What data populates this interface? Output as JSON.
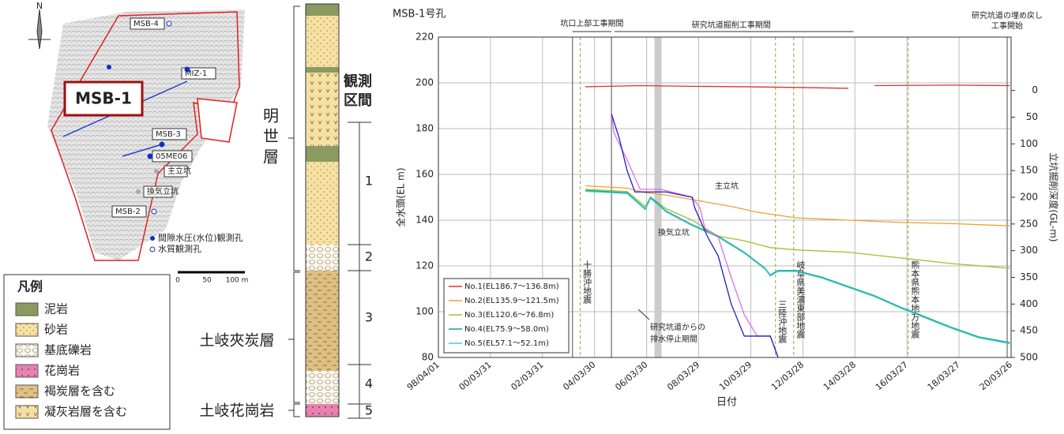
{
  "map": {
    "north": "N",
    "labels": [
      "MSB-4",
      "MIZ-1",
      "MSB-3",
      "05ME06",
      "主立坑",
      "換気立坑",
      "MSB-2"
    ],
    "highlight": "MSB-1",
    "key": [
      "間隙水圧(水位)観測孔",
      "水質観測孔"
    ],
    "scale": [
      "0",
      "50",
      "100 m"
    ]
  },
  "legend": {
    "title": "凡例",
    "items": [
      "泥岩",
      "砂岩",
      "基底礫岩",
      "花崗岩",
      "褐炭層を含む",
      "凝灰岩層を含む"
    ]
  },
  "column": {
    "heading": [
      "観測",
      "区間"
    ],
    "formations": [
      "明世層",
      "土岐夾炭層",
      "土岐花崗岩"
    ],
    "intervals": [
      "1",
      "2",
      "3",
      "4",
      "5"
    ]
  },
  "chart_data": {
    "type": "line",
    "title": "MSB-1号孔",
    "xlabel": "日付",
    "ylabel": "全水頭(EL m)",
    "y2label": "立坑掘削深度(GL-m)",
    "xlim": [
      1998.25,
      2020.25
    ],
    "xticks": [
      {
        "value": 1998.25,
        "label": "98/04/01"
      },
      {
        "value": 2000.25,
        "label": "00/03/31"
      },
      {
        "value": 2002.25,
        "label": "02/03/31"
      },
      {
        "value": 2004.25,
        "label": "04/03/30"
      },
      {
        "value": 2006.25,
        "label": "06/03/30"
      },
      {
        "value": 2008.25,
        "label": "08/03/29"
      },
      {
        "value": 2010.25,
        "label": "10/03/29"
      },
      {
        "value": 2012.25,
        "label": "12/03/28"
      },
      {
        "value": 2014.25,
        "label": "14/03/28"
      },
      {
        "value": 2016.25,
        "label": "16/03/27"
      },
      {
        "value": 2018.25,
        "label": "18/03/27"
      },
      {
        "value": 2020.25,
        "label": "20/03/26"
      }
    ],
    "ylim": [
      80,
      220
    ],
    "yticks": [
      80,
      100,
      120,
      140,
      160,
      180,
      200,
      220
    ],
    "y2lim": [
      500,
      -100
    ],
    "y2ticks": [
      0,
      50,
      100,
      150,
      200,
      250,
      300,
      350,
      400,
      450,
      500
    ],
    "grid": true,
    "annotations": [
      "坑口上部工事期間",
      "研究坑道掘削工事期間",
      "研究坑道の埋め戻し",
      "工事開始",
      "十勝沖地震",
      "三陸沖地震",
      "岐阜県美濃東部地震",
      "熊本県熊本地方地震",
      "研究坑道からの",
      "排水停止期間"
    ],
    "series": [
      {
        "name": "No.1(EL186.7～136.8m)",
        "color": "#e03030",
        "x": [
          2003.9,
          2006,
          2008,
          2010,
          2012,
          2014,
          2014.6,
          2015,
          2018,
          2020.2
        ],
        "values": [
          198.3,
          198.8,
          198.5,
          198.3,
          198,
          197.6,
          null,
          198.8,
          199,
          198.8
        ]
      },
      {
        "name": "No.2(EL135.9～121.5m)",
        "color": "#f0a030",
        "x": [
          2003.9,
          2005.5,
          2006.2,
          2007,
          2009.5,
          2010.5,
          2012,
          2014,
          2016,
          2018,
          2020.2
        ],
        "values": [
          155,
          154,
          152,
          151,
          146,
          143.5,
          141,
          140,
          139,
          138.5,
          137.5
        ]
      },
      {
        "name": "No.3(EL120.6～76.8m)",
        "color": "#a0c030",
        "x": [
          2003.9,
          2005.5,
          2006.2,
          2006.4,
          2007,
          2008,
          2009,
          2010,
          2011,
          2012,
          2014,
          2016,
          2018,
          2020.2
        ],
        "values": [
          153.5,
          152.5,
          146,
          150,
          145,
          140,
          133,
          131,
          128,
          127,
          126,
          123.5,
          121,
          119
        ]
      },
      {
        "name": "No.4(EL75.9～58.0m)",
        "color": "#1a9a9a",
        "x": [
          2003.9,
          2005.5,
          2006.2,
          2006.4,
          2007,
          2008,
          2009,
          2010,
          2010.8,
          2011,
          2011.3,
          2012,
          2013,
          2014,
          2015,
          2016,
          2017,
          2018,
          2019,
          2020.2
        ],
        "values": [
          153,
          152,
          145,
          150,
          144,
          138,
          133,
          126,
          119,
          116,
          118,
          118,
          115,
          111,
          107,
          102,
          97.5,
          93,
          89,
          86.5
        ]
      },
      {
        "name": "No.5(EL57.1～52.1m)",
        "color": "#40d0d0",
        "x": [
          2003.9,
          2005.5,
          2006.2,
          2006.4,
          2007,
          2008,
          2009,
          2010,
          2010.8,
          2011,
          2011.3,
          2012,
          2013,
          2014,
          2015,
          2016,
          2017,
          2018,
          2019,
          2020.2
        ],
        "values": [
          152.6,
          151.6,
          144.6,
          149.5,
          143.6,
          137.6,
          132.6,
          125.6,
          118.6,
          115.6,
          117.6,
          117.6,
          114.6,
          110.6,
          106.6,
          101.6,
          97,
          92.6,
          88.6,
          86
        ]
      },
      {
        "name": "主立坑",
        "color": "#e070e0",
        "axis": "y2",
        "x": [
          2004.9,
          2005,
          2005.5,
          2006,
          2006.8,
          2007.2,
          2008,
          2008.3,
          2008.5,
          2009,
          2009.5,
          2010,
          2010.5,
          2011,
          2011.3
        ],
        "values": [
          44,
          80,
          130,
          185,
          185,
          190,
          200,
          220,
          260,
          275,
          350,
          420,
          460,
          460,
          500
        ]
      },
      {
        "name": "換気立坑",
        "color": "#2020c0",
        "axis": "y2",
        "x": [
          2004.9,
          2005.2,
          2005.5,
          2005.8,
          2006,
          2007,
          2008,
          2008.1,
          2008.6,
          2009,
          2009.5,
          2010,
          2011,
          2011.3
        ],
        "values": [
          44,
          90,
          150,
          190,
          190,
          190,
          200,
          220,
          275,
          310,
          400,
          460,
          460,
          500
        ]
      }
    ]
  }
}
